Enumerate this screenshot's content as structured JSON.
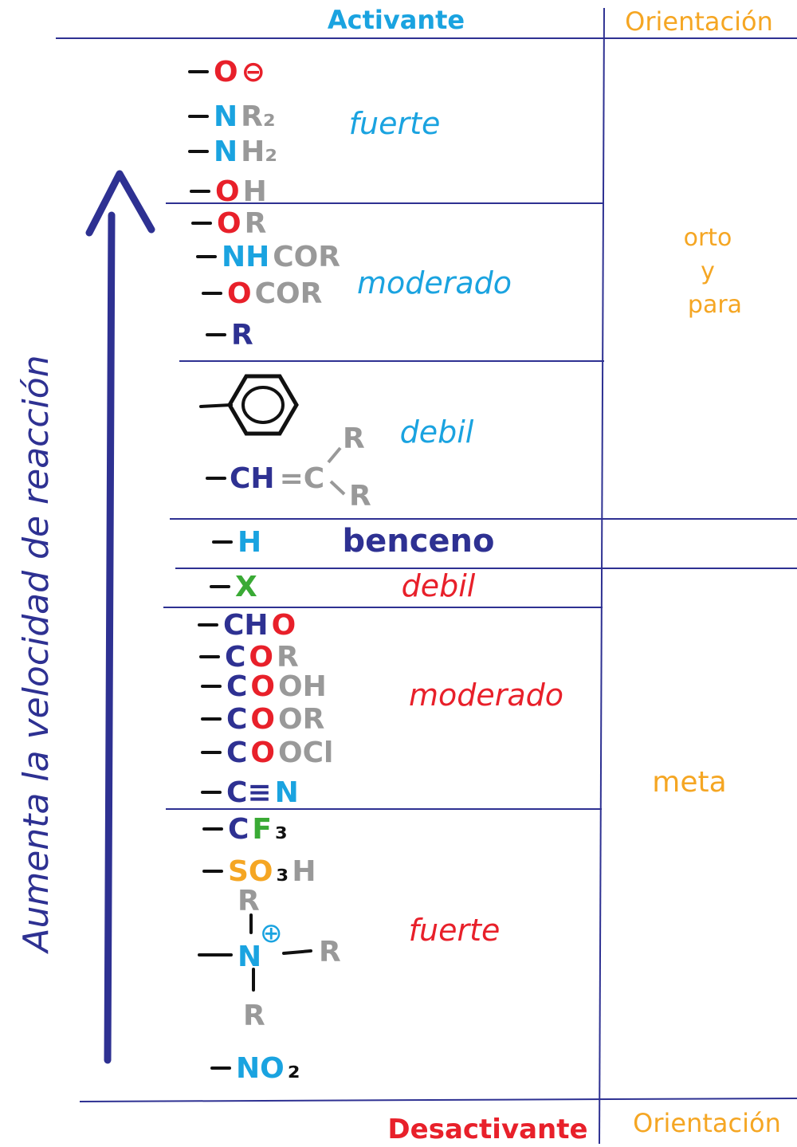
{
  "header": {
    "left": "Activante",
    "right": "Orientación"
  },
  "footer": {
    "left": "Desactivante",
    "right": "Orientación"
  },
  "axis_label": "Aumenta la velocidad de reacción",
  "groups": [
    {
      "label": "fuerte",
      "substituents": [
        [
          {
            "text": "O",
            "color": "#e8202a"
          },
          {
            "text": "⊖",
            "color": "#e8202a"
          }
        ],
        [
          {
            "text": "N",
            "color": "#1aa3e0"
          },
          {
            "text": "R₂",
            "color": "#999999"
          }
        ],
        [
          {
            "text": "N",
            "color": "#1aa3e0"
          },
          {
            "text": "H₂",
            "color": "#999999"
          }
        ],
        [
          {
            "text": "O",
            "color": "#e8202a"
          },
          {
            "text": "H",
            "color": "#999999"
          }
        ]
      ]
    },
    {
      "label": "moderado",
      "substituents": [
        [
          {
            "text": "O",
            "color": "#e8202a"
          },
          {
            "text": "R",
            "color": "#999999"
          }
        ],
        [
          {
            "text": "NH",
            "color": "#1aa3e0"
          },
          {
            "text": "COR",
            "color": "#999999"
          }
        ],
        [
          {
            "text": "O",
            "color": "#e8202a"
          },
          {
            "text": "COR",
            "color": "#999999"
          }
        ],
        [
          {
            "text": "R",
            "color": "#2e3192"
          }
        ]
      ]
    },
    {
      "label": "debil",
      "substituents": [
        [
          {
            "text": "CH",
            "color": "#2e3192"
          },
          {
            "text": "=C",
            "color": "#999999"
          },
          {
            "text": "R",
            "color": "#999999"
          },
          {
            "text": "R",
            "color": "#999999"
          }
        ]
      ]
    },
    {
      "label": "benceno",
      "substituents": [
        [
          {
            "text": "H",
            "color": "#1aa3e0"
          }
        ]
      ]
    },
    {
      "label": "debil",
      "substituents": [
        [
          {
            "text": "X",
            "color": "#3aaa35"
          }
        ]
      ]
    },
    {
      "label": "moderado",
      "substituents": [
        [
          {
            "text": "CH",
            "color": "#2e3192"
          },
          {
            "text": "O",
            "color": "#e8202a"
          }
        ],
        [
          {
            "text": "C",
            "color": "#2e3192"
          },
          {
            "text": "O",
            "color": "#e8202a"
          },
          {
            "text": "R",
            "color": "#999999"
          }
        ],
        [
          {
            "text": "C",
            "color": "#2e3192"
          },
          {
            "text": "O",
            "color": "#e8202a"
          },
          {
            "text": "OH",
            "color": "#999999"
          }
        ],
        [
          {
            "text": "C",
            "color": "#2e3192"
          },
          {
            "text": "O",
            "color": "#e8202a"
          },
          {
            "text": "OR",
            "color": "#999999"
          }
        ],
        [
          {
            "text": "C",
            "color": "#2e3192"
          },
          {
            "text": "O",
            "color": "#e8202a"
          },
          {
            "text": "OCl",
            "color": "#999999"
          }
        ],
        [
          {
            "text": "C≡",
            "color": "#2e3192"
          },
          {
            "text": "N",
            "color": "#1aa3e0"
          }
        ]
      ]
    },
    {
      "label": "fuerte",
      "substituents": [
        [
          {
            "text": "C",
            "color": "#2e3192"
          },
          {
            "text": "F",
            "color": "#3aaa35"
          },
          {
            "text": "₃",
            "color": "#111111"
          }
        ],
        [
          {
            "text": "SO",
            "color": "#f5a623"
          },
          {
            "text": "₃",
            "color": "#111111"
          },
          {
            "text": "H",
            "color": "#999999"
          }
        ],
        [
          {
            "text": "N",
            "color": "#1aa3e0"
          },
          {
            "text": "⊕",
            "color": "#1aa3e0"
          },
          {
            "text": "R",
            "color": "#999999"
          },
          {
            "text": "R",
            "color": "#999999"
          },
          {
            "text": "R",
            "color": "#999999"
          }
        ],
        [
          {
            "text": "NO",
            "color": "#1aa3e0"
          },
          {
            "text": "₂",
            "color": "#111111"
          }
        ]
      ]
    }
  ],
  "orientation": [
    {
      "lines": [
        "orto",
        "y",
        "para"
      ]
    },
    {
      "lines": [
        "meta"
      ]
    }
  ]
}
